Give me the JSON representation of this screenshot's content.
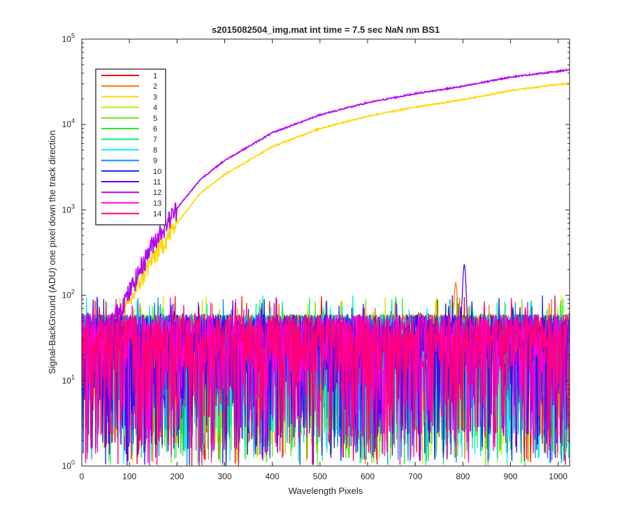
{
  "chart_data": {
    "type": "line",
    "title": "s2015082504_img.mat int time = 7.5 sec  NaN nm BS1",
    "xlabel": "Wavelength Pixels",
    "ylabel": "Signal-BackGround (ADU) one pixel down the track direction",
    "xlim": [
      0,
      1024
    ],
    "ylim": [
      1,
      100000
    ],
    "yscale": "log",
    "grid": false,
    "legend_position": "top-left",
    "x_ticks": [
      0,
      100,
      200,
      300,
      400,
      500,
      600,
      700,
      800,
      900,
      1000
    ],
    "x_tick_labels": [
      "0",
      "100",
      "200",
      "300",
      "400",
      "500",
      "600",
      "700",
      "800",
      "900",
      "1000"
    ],
    "y_ticks": [
      1,
      10,
      100,
      1000,
      10000,
      100000
    ],
    "y_tick_bases": [
      "10",
      "10",
      "10",
      "10",
      "10",
      "10"
    ],
    "y_tick_exponents": [
      "0",
      "1",
      "2",
      "3",
      "4",
      "5"
    ],
    "series": [
      {
        "name": "1",
        "color": "#ff0000",
        "kind": "noise"
      },
      {
        "name": "2",
        "color": "#ff7000",
        "kind": "noise",
        "peak": {
          "x": 785,
          "y": 140
        }
      },
      {
        "name": "3",
        "color": "#ffd700",
        "kind": "signal",
        "x": [
          50,
          80,
          100,
          120,
          150,
          200,
          250,
          300,
          400,
          500,
          600,
          700,
          800,
          900,
          1000,
          1024
        ],
        "y": [
          30,
          55,
          80,
          140,
          280,
          700,
          1600,
          2600,
          5500,
          9000,
          12500,
          16000,
          19500,
          25000,
          29500,
          30000
        ]
      },
      {
        "name": "4",
        "color": "#c8f000",
        "kind": "noise"
      },
      {
        "name": "5",
        "color": "#6ee800",
        "kind": "noise"
      },
      {
        "name": "6",
        "color": "#2ae82a",
        "kind": "noise"
      },
      {
        "name": "7",
        "color": "#00f08c",
        "kind": "noise"
      },
      {
        "name": "8",
        "color": "#00f0f0",
        "kind": "noise"
      },
      {
        "name": "9",
        "color": "#0096e6",
        "kind": "noise"
      },
      {
        "name": "10",
        "color": "#0a28f0",
        "kind": "noise"
      },
      {
        "name": "11",
        "color": "#5a00f0",
        "kind": "noise",
        "peak": {
          "x": 803,
          "y": 230
        }
      },
      {
        "name": "12",
        "color": "#b400f0",
        "kind": "signal",
        "x": [
          50,
          80,
          100,
          120,
          150,
          200,
          250,
          300,
          400,
          500,
          600,
          700,
          800,
          900,
          1000,
          1024
        ],
        "y": [
          40,
          70,
          110,
          190,
          420,
          1050,
          2300,
          3800,
          8000,
          13000,
          18000,
          23000,
          28000,
          36000,
          42000,
          44000
        ]
      },
      {
        "name": "13",
        "color": "#ff00dc",
        "kind": "noise"
      },
      {
        "name": "14",
        "color": "#ff0078",
        "kind": "noise"
      }
    ]
  }
}
